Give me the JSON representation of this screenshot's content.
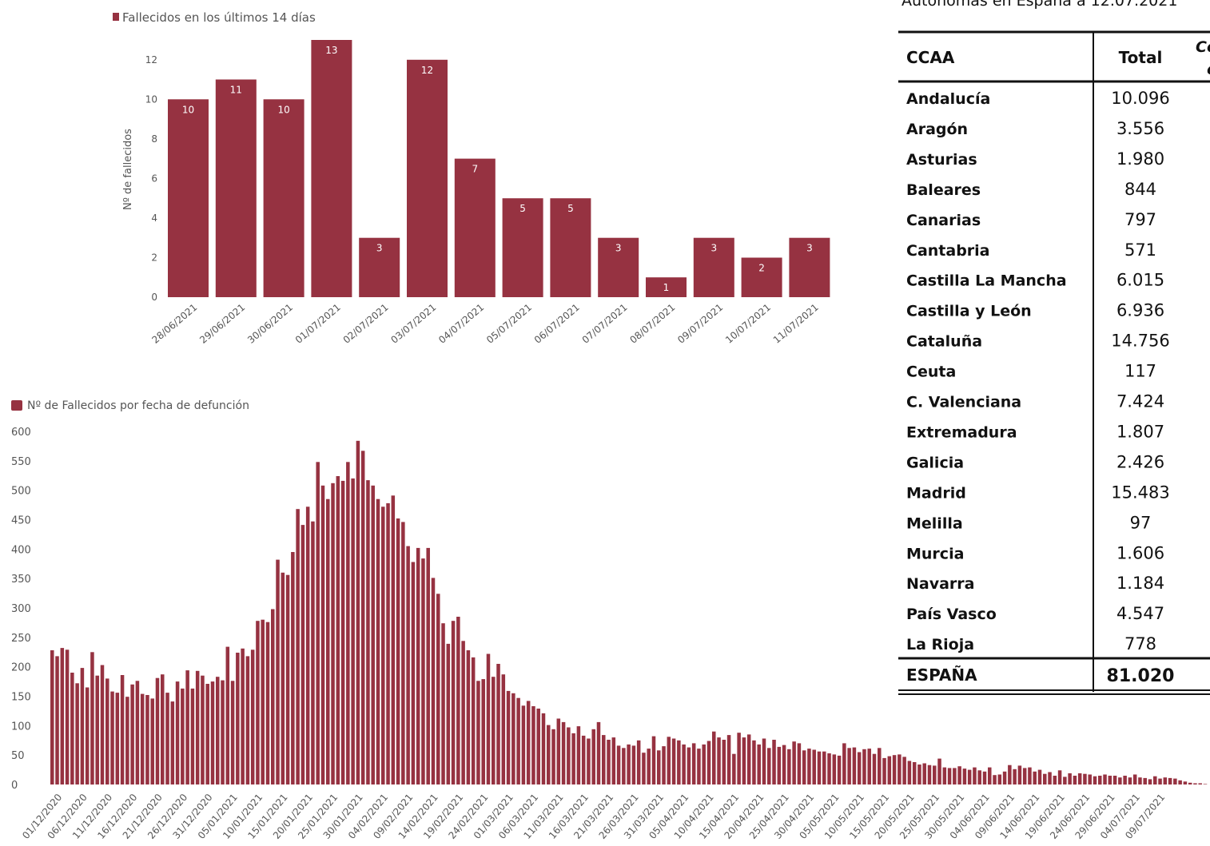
{
  "header_clip": "Autonomas en España a 12.07.2021",
  "chart_data": [
    {
      "type": "bar",
      "legend": "Fallecidos en los últimos 14 días",
      "ylabel": "Nº de fallecidos",
      "ylim": [
        0,
        13
      ],
      "yticks": [
        0,
        2,
        4,
        6,
        8,
        10,
        12
      ],
      "categories": [
        "28/06/2021",
        "29/06/2021",
        "30/06/2021",
        "01/07/2021",
        "02/07/2021",
        "03/07/2021",
        "04/07/2021",
        "05/07/2021",
        "06/07/2021",
        "07/07/2021",
        "08/07/2021",
        "09/07/2021",
        "10/07/2021",
        "11/07/2021"
      ],
      "values": [
        10,
        11,
        10,
        13,
        3,
        12,
        7,
        5,
        5,
        3,
        1,
        3,
        2,
        3
      ],
      "color": "#963241"
    },
    {
      "type": "bar",
      "legend": "Nº de Fallecidos por fecha de defunción",
      "ylim": [
        0,
        600
      ],
      "yticks": [
        0,
        50,
        100,
        150,
        200,
        250,
        300,
        350,
        400,
        450,
        500,
        550,
        600
      ],
      "x_start": "01/12/2020",
      "x_end": "11/07/2021",
      "tick_labels": [
        "01/12/2020",
        "06/12/2020",
        "11/12/2020",
        "16/12/2020",
        "21/12/2020",
        "26/12/2020",
        "31/12/2020",
        "05/01/2021",
        "10/01/2021",
        "15/01/2021",
        "20/01/2021",
        "25/01/2021",
        "30/01/2021",
        "04/02/2021",
        "09/02/2021",
        "14/02/2021",
        "19/02/2021",
        "24/02/2021",
        "01/03/2021",
        "06/03/2021",
        "11/03/2021",
        "16/03/2021",
        "21/03/2021",
        "26/03/2021",
        "31/03/2021",
        "05/04/2021",
        "10/04/2021",
        "15/04/2021",
        "20/04/2021",
        "25/04/2021",
        "30/04/2021",
        "05/05/2021",
        "10/05/2021",
        "15/05/2021",
        "20/05/2021",
        "25/05/2021",
        "30/05/2021",
        "04/06/2021",
        "09/06/2021",
        "14/06/2021",
        "19/06/2021",
        "24/06/2021",
        "29/06/2021",
        "04/07/2021",
        "09/07/2021"
      ],
      "values": [
        228,
        218,
        232,
        229,
        190,
        172,
        198,
        165,
        225,
        185,
        203,
        180,
        158,
        156,
        186,
        149,
        170,
        176,
        154,
        152,
        146,
        181,
        187,
        156,
        141,
        175,
        163,
        194,
        163,
        193,
        185,
        171,
        175,
        183,
        177,
        234,
        176,
        224,
        231,
        218,
        229,
        278,
        280,
        276,
        298,
        382,
        360,
        356,
        395,
        468,
        441,
        472,
        447,
        548,
        508,
        485,
        512,
        524,
        516,
        548,
        520,
        584,
        567,
        517,
        508,
        485,
        472,
        478,
        491,
        452,
        446,
        405,
        378,
        402,
        384,
        402,
        351,
        324,
        274,
        239,
        278,
        285,
        244,
        228,
        216,
        176,
        179,
        222,
        183,
        205,
        187,
        159,
        155,
        147,
        134,
        142,
        133,
        129,
        121,
        101,
        94,
        112,
        106,
        97,
        87,
        99,
        83,
        78,
        94,
        106,
        84,
        76,
        80,
        66,
        62,
        68,
        66,
        75,
        54,
        61,
        82,
        58,
        65,
        81,
        78,
        75,
        68,
        63,
        70,
        61,
        68,
        74,
        90,
        80,
        76,
        84,
        52,
        88,
        80,
        85,
        75,
        68,
        78,
        62,
        76,
        64,
        67,
        60,
        73,
        70,
        58,
        61,
        59,
        56,
        56,
        53,
        51,
        49,
        70,
        62,
        63,
        55,
        60,
        61,
        52,
        62,
        45,
        48,
        50,
        51,
        47,
        40,
        38,
        34,
        36,
        33,
        32,
        44,
        29,
        28,
        28,
        31,
        27,
        25,
        29,
        24,
        22,
        29,
        16,
        17,
        22,
        33,
        26,
        32,
        28,
        29,
        22,
        25,
        18,
        21,
        15,
        24,
        13,
        19,
        15,
        19,
        18,
        17,
        14,
        15,
        17,
        15,
        15,
        12,
        15,
        12,
        17,
        12,
        11,
        9,
        14,
        10,
        12,
        11,
        10,
        7,
        5,
        3,
        2,
        2,
        0
      ],
      "color": "#963241"
    }
  ],
  "table": {
    "headers": [
      "CCAA",
      "Total",
      "Co"
    ],
    "header_extra": "c",
    "rows": [
      {
        "name": "Andalucía",
        "total": "10.096"
      },
      {
        "name": "Aragón",
        "total": "3.556"
      },
      {
        "name": "Asturias",
        "total": "1.980"
      },
      {
        "name": "Baleares",
        "total": "844"
      },
      {
        "name": "Canarias",
        "total": "797"
      },
      {
        "name": "Cantabria",
        "total": "571"
      },
      {
        "name": "Castilla La Mancha",
        "total": "6.015"
      },
      {
        "name": "Castilla y León",
        "total": "6.936"
      },
      {
        "name": "Cataluña",
        "total": "14.756"
      },
      {
        "name": "Ceuta",
        "total": "117"
      },
      {
        "name": "C. Valenciana",
        "total": "7.424"
      },
      {
        "name": "Extremadura",
        "total": "1.807"
      },
      {
        "name": "Galicia",
        "total": "2.426"
      },
      {
        "name": "Madrid",
        "total": "15.483"
      },
      {
        "name": "Melilla",
        "total": "97"
      },
      {
        "name": "Murcia",
        "total": "1.606"
      },
      {
        "name": "Navarra",
        "total": "1.184"
      },
      {
        "name": "País Vasco",
        "total": "4.547"
      },
      {
        "name": "La Rioja",
        "total": "778"
      }
    ],
    "total_row": {
      "name": "ESPAÑA",
      "total": "81.020"
    }
  }
}
